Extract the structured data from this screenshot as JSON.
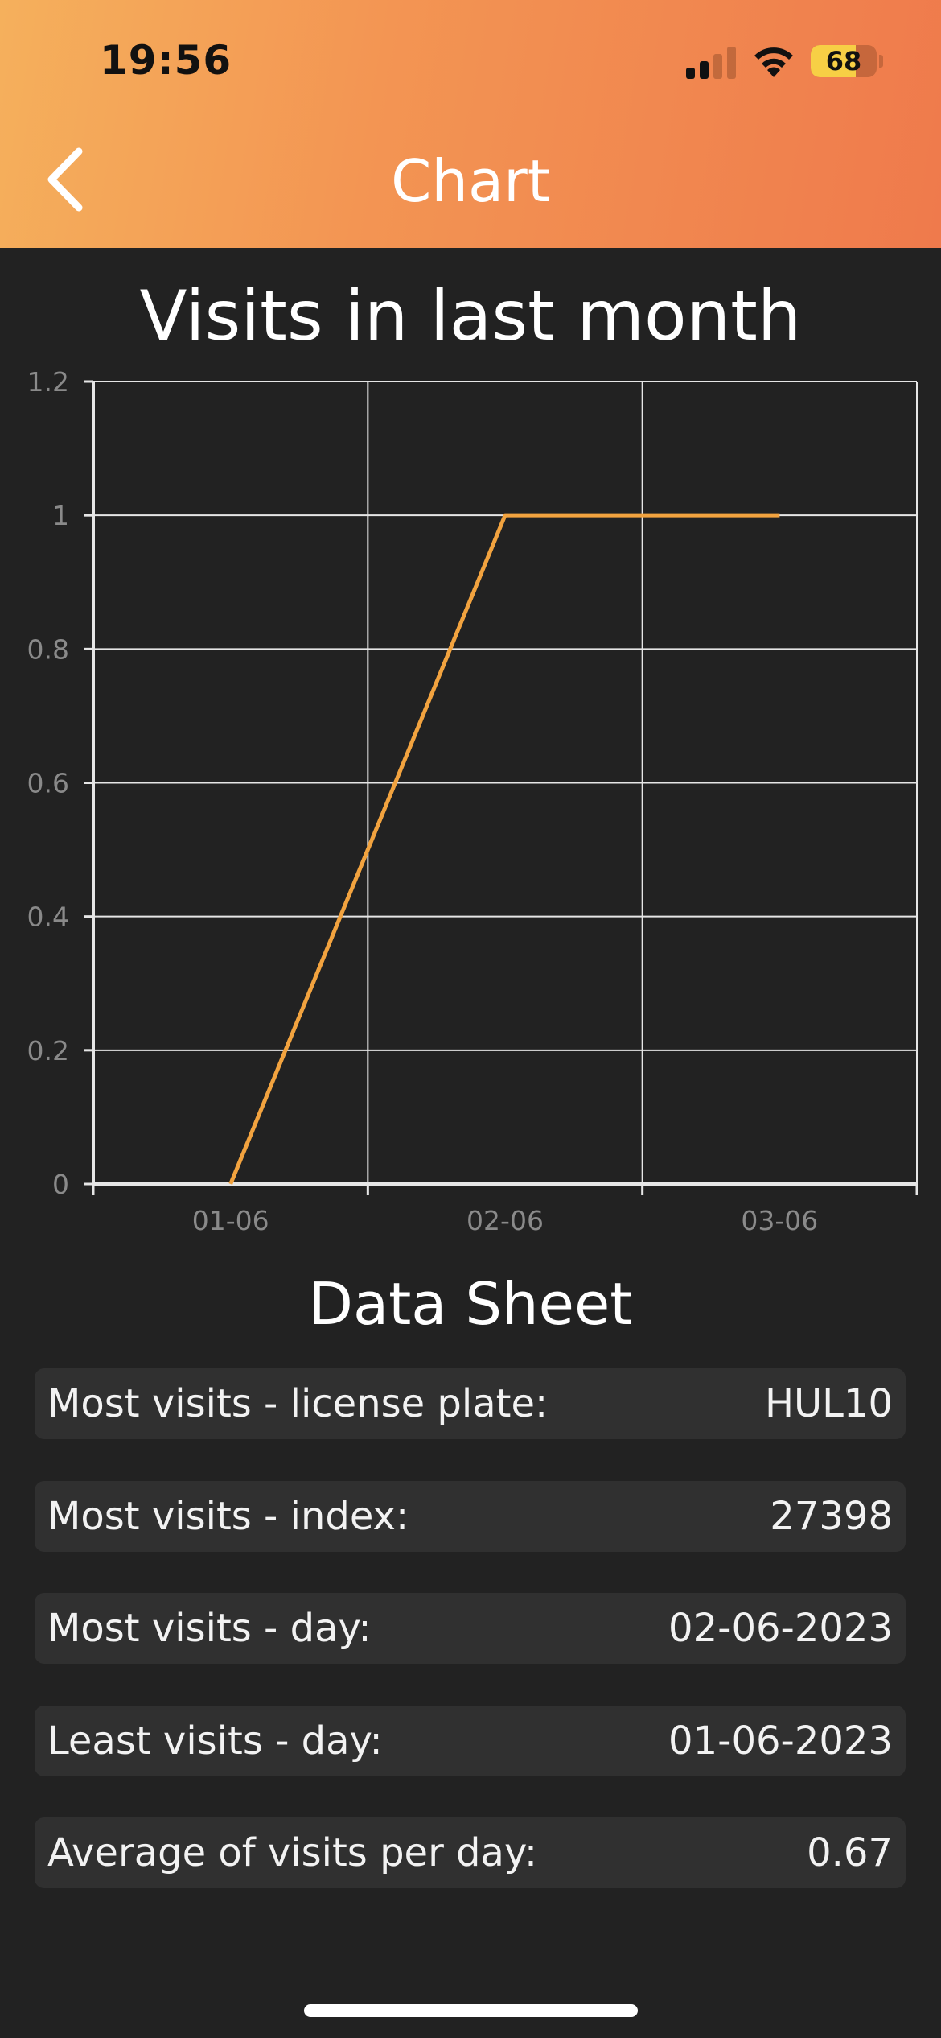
{
  "status_bar": {
    "time": "19:56",
    "battery_level": "68"
  },
  "header": {
    "title": "Chart",
    "back_icon": "chevron-left-icon"
  },
  "chart_data": {
    "type": "line",
    "title": "Visits in last month",
    "x": [
      "01-06",
      "02-06",
      "03-06"
    ],
    "series": [
      {
        "values": [
          0,
          1,
          1
        ],
        "color": "#f2a33f"
      }
    ],
    "ylim": [
      0,
      1.2
    ],
    "yticks": [
      "0",
      "0.2",
      "0.4",
      "0.6",
      "0.8",
      "1",
      "1.2"
    ],
    "grid": true
  },
  "data_sheet": {
    "title": "Data Sheet",
    "rows": [
      {
        "label": "Most visits - license plate:",
        "value": "HUL10"
      },
      {
        "label": "Most visits - index:",
        "value": "27398"
      },
      {
        "label": "Most visits - day:",
        "value": "02-06-2023"
      },
      {
        "label": "Least visits - day:",
        "value": "01-06-2023"
      },
      {
        "label": "Average of visits per day:",
        "value": "0.67"
      }
    ]
  },
  "colors": {
    "header_gradient_start": "#f5b05c",
    "header_gradient_end": "#ef7a4c",
    "background": "#222222",
    "row_background": "#303030",
    "line": "#f2a33f"
  }
}
